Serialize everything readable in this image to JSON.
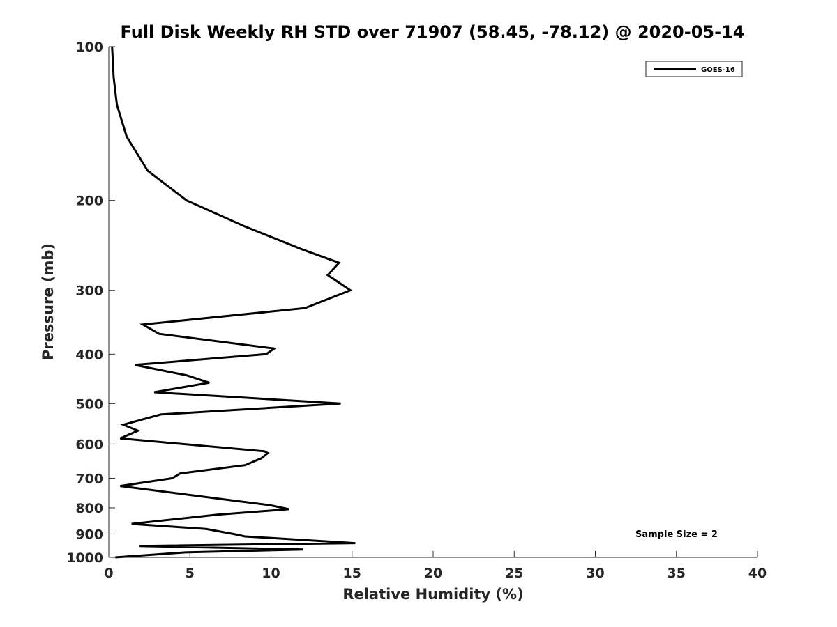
{
  "chart_data": {
    "type": "line",
    "title": "Full Disk Weekly RH STD over 71907 (58.45, -78.12) @ 2020-05-14",
    "xlabel": "Relative Humidity (%)",
    "ylabel": "Pressure (mb)",
    "xlim": [
      0,
      40
    ],
    "ylim": [
      100,
      1000
    ],
    "y_scale": "log",
    "y_reversed": true,
    "x_ticks": [
      0,
      5,
      10,
      15,
      20,
      25,
      30,
      35,
      40
    ],
    "x_tick_labels": [
      "0",
      "5",
      "10",
      "15",
      "20",
      "25",
      "30",
      "35",
      "40"
    ],
    "y_ticks": [
      100,
      200,
      300,
      400,
      500,
      600,
      700,
      800,
      900,
      1000
    ],
    "y_tick_labels": [
      "100",
      "200",
      "300",
      "400",
      "500",
      "600",
      "700",
      "800",
      "900",
      "1000"
    ],
    "grid": false,
    "legend_position": "top-right",
    "annotation": "Sample Size = 2",
    "series": [
      {
        "name": "GOES-16",
        "color": "#000000",
        "points": [
          [
            0.2,
            100
          ],
          [
            0.3,
            115
          ],
          [
            0.5,
            130
          ],
          [
            1.1,
            150
          ],
          [
            2.4,
            175
          ],
          [
            4.8,
            200
          ],
          [
            8.4,
            225
          ],
          [
            12.0,
            250
          ],
          [
            14.2,
            265
          ],
          [
            13.5,
            280
          ],
          [
            14.9,
            300
          ],
          [
            12.1,
            325
          ],
          [
            2.1,
            350
          ],
          [
            3.1,
            365
          ],
          [
            10.2,
            390
          ],
          [
            9.7,
            400
          ],
          [
            1.6,
            420
          ],
          [
            4.8,
            440
          ],
          [
            6.2,
            455
          ],
          [
            2.8,
            475
          ],
          [
            14.3,
            500
          ],
          [
            3.2,
            525
          ],
          [
            0.9,
            550
          ],
          [
            1.8,
            565
          ],
          [
            0.7,
            585
          ],
          [
            9.6,
            620
          ],
          [
            9.8,
            625
          ],
          [
            9.4,
            640
          ],
          [
            8.4,
            660
          ],
          [
            4.4,
            685
          ],
          [
            3.9,
            700
          ],
          [
            0.7,
            725
          ],
          [
            4.3,
            750
          ],
          [
            7.8,
            775
          ],
          [
            9.9,
            790
          ],
          [
            11.1,
            805
          ],
          [
            6.7,
            825
          ],
          [
            2.9,
            850
          ],
          [
            1.4,
            860
          ],
          [
            6.0,
            880
          ],
          [
            7.7,
            900
          ],
          [
            8.4,
            910
          ],
          [
            15.2,
            938
          ],
          [
            1.9,
            950
          ],
          [
            12.0,
            965
          ],
          [
            4.7,
            978
          ],
          [
            0.4,
            1000
          ]
        ]
      }
    ]
  }
}
